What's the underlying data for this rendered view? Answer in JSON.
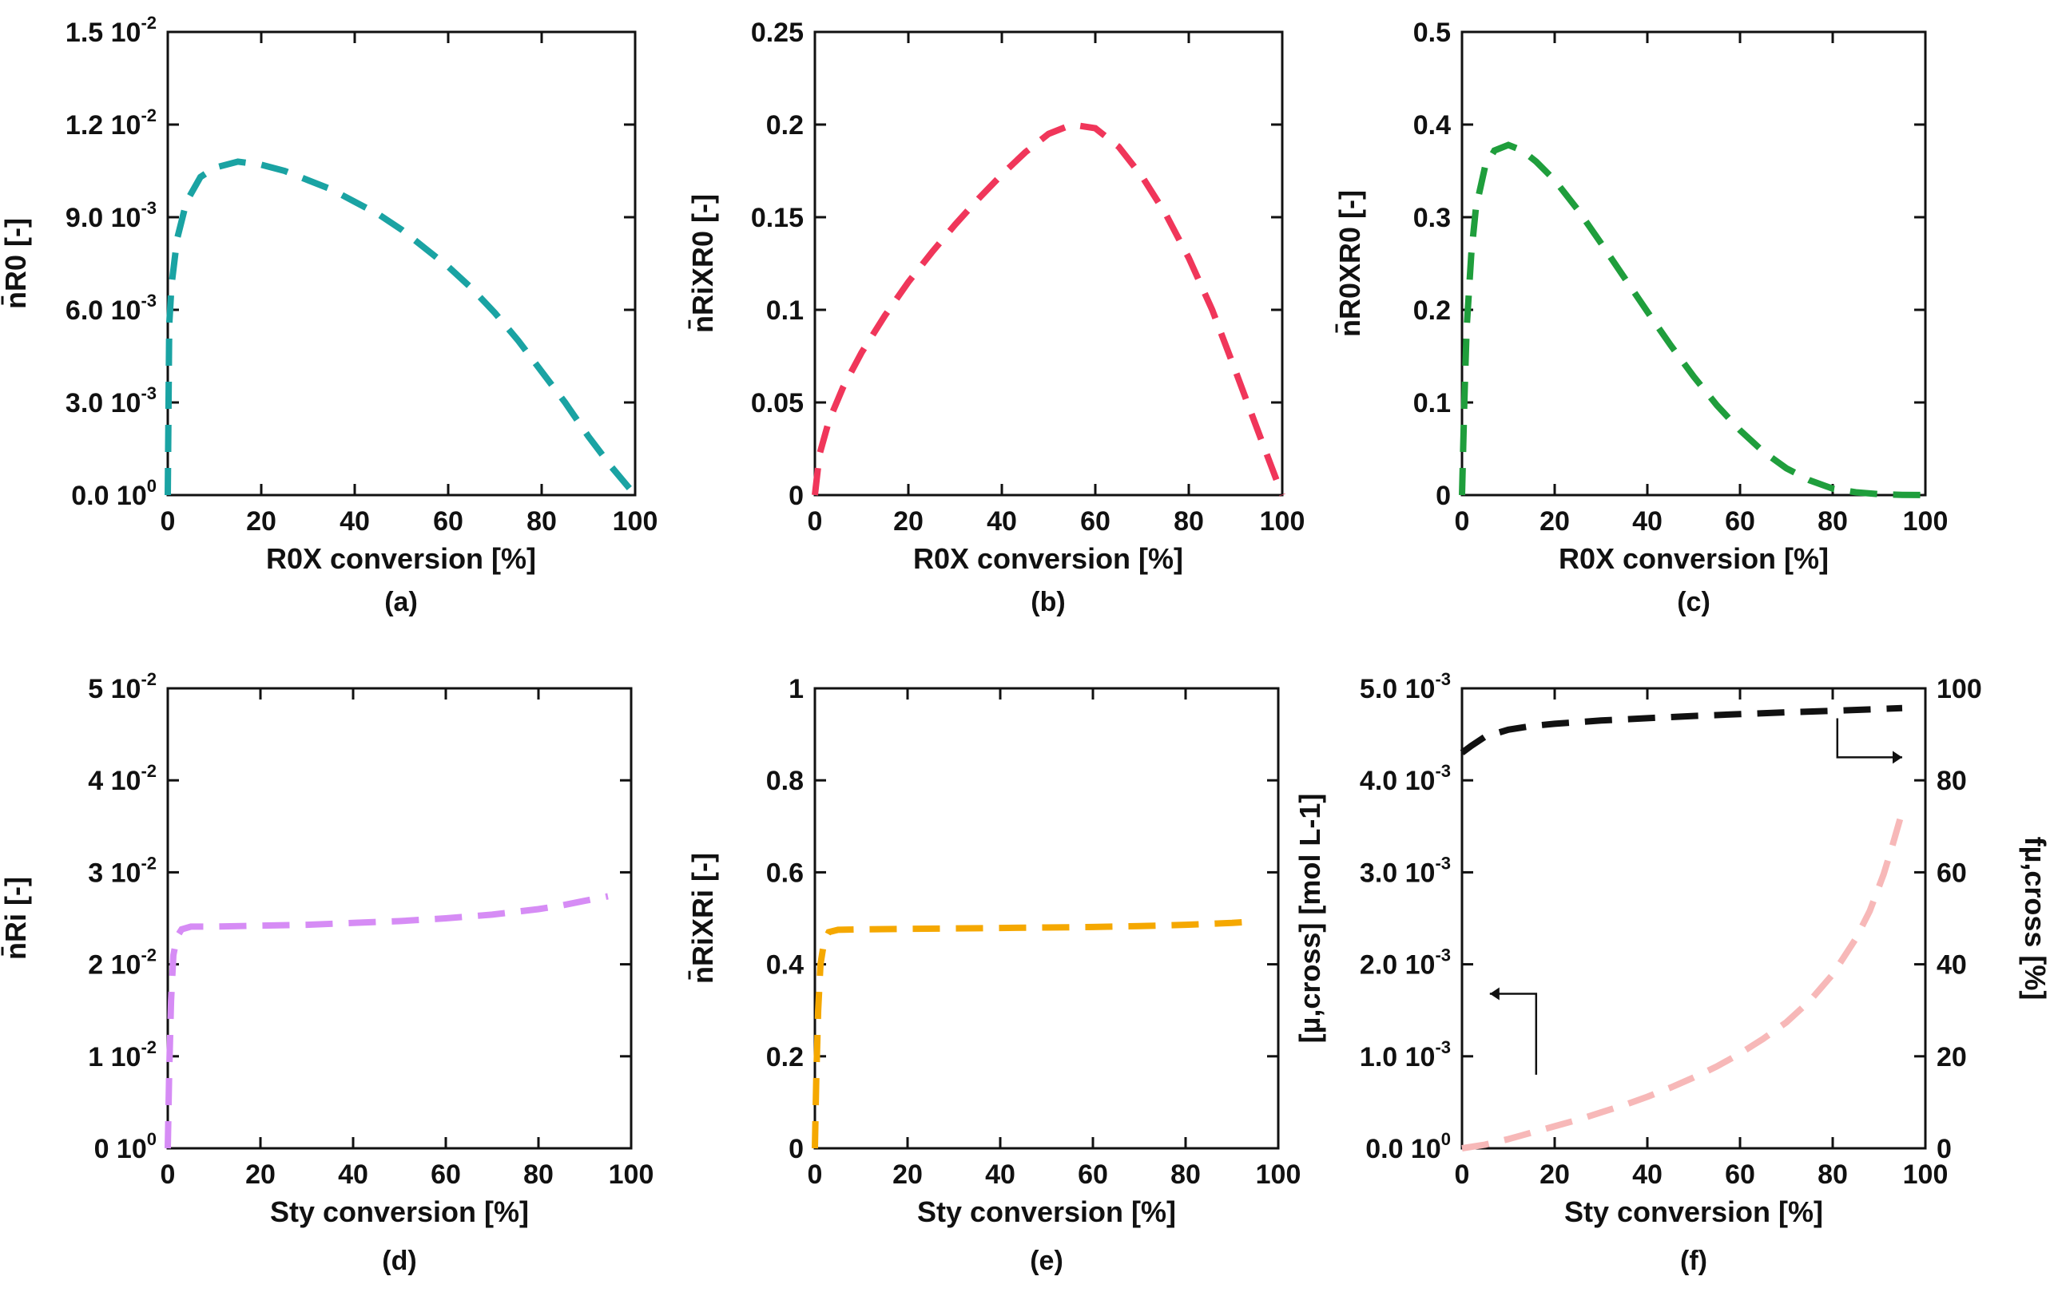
{
  "chart_data": [
    {
      "id": "a",
      "panel_label": "(a)",
      "type": "line",
      "xlabel": "R0X conversion [%]",
      "ylabel": "n̄R0 [-]",
      "xlim": [
        0,
        100
      ],
      "ylim": [
        0,
        0.015
      ],
      "x_ticks": [
        "0",
        "20",
        "40",
        "60",
        "80",
        "100"
      ],
      "y_ticks": [
        {
          "mant": "0.0 10",
          "exp": "0"
        },
        {
          "mant": "3.0 10",
          "exp": "-3"
        },
        {
          "mant": "6.0 10",
          "exp": "-3"
        },
        {
          "mant": "9.0 10",
          "exp": "-3"
        },
        {
          "mant": "1.2 10",
          "exp": "-2"
        },
        {
          "mant": "1.5 10",
          "exp": "-2"
        }
      ],
      "series": [
        {
          "name": "n_R0",
          "color": "#1aa3a3",
          "x": [
            0,
            0.3,
            0.8,
            2,
            4,
            7,
            10,
            15,
            20,
            25,
            30,
            35,
            40,
            45,
            50,
            55,
            60,
            65,
            70,
            75,
            80,
            85,
            90,
            95,
            100
          ],
          "y": [
            0,
            0.0055,
            0.0068,
            0.0083,
            0.0095,
            0.0103,
            0.0106,
            0.0108,
            0.0107,
            0.0105,
            0.0102,
            0.0099,
            0.0095,
            0.0091,
            0.0086,
            0.008,
            0.0074,
            0.0067,
            0.0059,
            0.005,
            0.004,
            0.003,
            0.0019,
            0.0009,
            0
          ]
        }
      ]
    },
    {
      "id": "b",
      "panel_label": "(b)",
      "type": "line",
      "xlabel": "R0X conversion [%]",
      "ylabel": "n̄RiXR0 [-]",
      "xlim": [
        0,
        100
      ],
      "ylim": [
        0,
        0.25
      ],
      "x_ticks": [
        "0",
        "20",
        "40",
        "60",
        "80",
        "100"
      ],
      "y_ticks": [
        {
          "mant": "0",
          "exp": ""
        },
        {
          "mant": "0.05",
          "exp": ""
        },
        {
          "mant": "0.1",
          "exp": ""
        },
        {
          "mant": "0.15",
          "exp": ""
        },
        {
          "mant": "0.2",
          "exp": ""
        },
        {
          "mant": "0.25",
          "exp": ""
        }
      ],
      "series": [
        {
          "name": "n_RiXR0",
          "color": "#f0365a",
          "x": [
            0,
            1,
            3,
            6,
            10,
            15,
            20,
            25,
            30,
            35,
            40,
            45,
            50,
            55,
            60,
            65,
            70,
            75,
            80,
            85,
            90,
            94,
            97,
            100
          ],
          "y": [
            0,
            0.022,
            0.04,
            0.058,
            0.077,
            0.097,
            0.115,
            0.131,
            0.146,
            0.16,
            0.173,
            0.185,
            0.195,
            0.2,
            0.198,
            0.188,
            0.172,
            0.152,
            0.128,
            0.1,
            0.067,
            0.04,
            0.02,
            0
          ]
        }
      ]
    },
    {
      "id": "c",
      "panel_label": "(c)",
      "type": "line",
      "xlabel": "R0X conversion [%]",
      "ylabel": "n̄R0XR0 [-]",
      "xlim": [
        0,
        100
      ],
      "ylim": [
        0,
        0.5
      ],
      "x_ticks": [
        "0",
        "20",
        "40",
        "60",
        "80",
        "100"
      ],
      "y_ticks": [
        {
          "mant": "0",
          "exp": ""
        },
        {
          "mant": "0.1",
          "exp": ""
        },
        {
          "mant": "0.2",
          "exp": ""
        },
        {
          "mant": "0.3",
          "exp": ""
        },
        {
          "mant": "0.4",
          "exp": ""
        },
        {
          "mant": "0.5",
          "exp": ""
        }
      ],
      "series": [
        {
          "name": "n_R0XR0",
          "color": "#1f9e3c",
          "x": [
            0,
            0.5,
            1,
            2,
            3,
            5,
            7,
            10,
            13,
            16,
            20,
            25,
            30,
            35,
            40,
            45,
            50,
            55,
            60,
            65,
            70,
            75,
            80,
            85,
            90,
            95,
            100
          ],
          "y": [
            0,
            0.1,
            0.18,
            0.26,
            0.31,
            0.355,
            0.372,
            0.378,
            0.372,
            0.36,
            0.34,
            0.308,
            0.272,
            0.235,
            0.198,
            0.162,
            0.128,
            0.097,
            0.07,
            0.047,
            0.029,
            0.016,
            0.007,
            0.003,
            0.001,
            0.0003,
            0
          ]
        }
      ]
    },
    {
      "id": "d",
      "panel_label": "(d)",
      "type": "line",
      "xlabel": "Sty conversion [%]",
      "ylabel": "n̄Ri [-]",
      "xlim": [
        0,
        100
      ],
      "ylim": [
        0,
        0.05
      ],
      "x_ticks": [
        "0",
        "20",
        "40",
        "60",
        "80",
        "100"
      ],
      "y_ticks": [
        {
          "mant": "0 10",
          "exp": "0"
        },
        {
          "mant": "1 10",
          "exp": "-2"
        },
        {
          "mant": "2 10",
          "exp": "-2"
        },
        {
          "mant": "3 10",
          "exp": "-2"
        },
        {
          "mant": "4 10",
          "exp": "-2"
        },
        {
          "mant": "5 10",
          "exp": "-2"
        }
      ],
      "series": [
        {
          "name": "n_Ri",
          "color": "#d68cf5",
          "x": [
            0,
            0.3,
            0.7,
            1.2,
            2,
            3,
            5,
            10,
            20,
            30,
            40,
            50,
            60,
            70,
            80,
            85,
            90,
            95
          ],
          "y": [
            0,
            0.008,
            0.016,
            0.021,
            0.023,
            0.0238,
            0.0241,
            0.0241,
            0.0242,
            0.0243,
            0.0245,
            0.0247,
            0.025,
            0.0254,
            0.026,
            0.0264,
            0.0269,
            0.0274
          ]
        }
      ]
    },
    {
      "id": "e",
      "panel_label": "(e)",
      "type": "line",
      "xlabel": "Sty conversion [%]",
      "ylabel": "n̄RiXRi [-]",
      "xlim": [
        0,
        100
      ],
      "ylim": [
        0,
        1
      ],
      "x_ticks": [
        "0",
        "20",
        "40",
        "60",
        "80",
        "100"
      ],
      "y_ticks": [
        {
          "mant": "0",
          "exp": ""
        },
        {
          "mant": "0.2",
          "exp": ""
        },
        {
          "mant": "0.4",
          "exp": ""
        },
        {
          "mant": "0.6",
          "exp": ""
        },
        {
          "mant": "0.8",
          "exp": ""
        },
        {
          "mant": "1",
          "exp": ""
        }
      ],
      "series": [
        {
          "name": "n_RiXRi",
          "color": "#f5a800",
          "x": [
            0,
            0.3,
            0.7,
            1.2,
            2,
            3,
            5,
            10,
            20,
            30,
            40,
            50,
            60,
            70,
            80,
            90,
            95
          ],
          "y": [
            0,
            0.15,
            0.3,
            0.4,
            0.45,
            0.47,
            0.475,
            0.476,
            0.477,
            0.478,
            0.479,
            0.48,
            0.481,
            0.483,
            0.486,
            0.49,
            0.493
          ]
        }
      ]
    },
    {
      "id": "f",
      "panel_label": "(f)",
      "type": "line",
      "xlabel": "Sty conversion [%]",
      "ylabel": "[µ,cross] [mol L-1]",
      "y2label": "fµ,cross [%]",
      "xlim": [
        0,
        100
      ],
      "ylim": [
        0,
        0.005
      ],
      "y2lim": [
        0,
        100
      ],
      "x_ticks": [
        "0",
        "20",
        "40",
        "60",
        "80",
        "100"
      ],
      "y_ticks": [
        {
          "mant": "0.0 10",
          "exp": "0"
        },
        {
          "mant": "1.0 10",
          "exp": "-3"
        },
        {
          "mant": "2.0 10",
          "exp": "-3"
        },
        {
          "mant": "3.0 10",
          "exp": "-3"
        },
        {
          "mant": "4.0 10",
          "exp": "-3"
        },
        {
          "mant": "5.0 10",
          "exp": "-3"
        }
      ],
      "y2_ticks": [
        "0",
        "20",
        "40",
        "60",
        "80",
        "100"
      ],
      "series": [
        {
          "name": "mu_cross_concentration",
          "axis": "left",
          "color": "#f7b8b8",
          "x": [
            0,
            5,
            10,
            15,
            20,
            25,
            30,
            35,
            40,
            45,
            50,
            55,
            60,
            65,
            70,
            75,
            80,
            85,
            88,
            91,
            93,
            95
          ],
          "y": [
            0,
            4e-05,
            0.0001,
            0.00017,
            0.00024,
            0.00031,
            0.00039,
            0.00047,
            0.00056,
            0.00066,
            0.00077,
            0.00089,
            0.00103,
            0.00119,
            0.00137,
            0.0016,
            0.00189,
            0.00228,
            0.00258,
            0.00298,
            0.00331,
            0.00366
          ]
        },
        {
          "name": "f_mu_cross",
          "axis": "right",
          "color": "#111111",
          "x": [
            0,
            2,
            5,
            10,
            15,
            20,
            30,
            40,
            50,
            60,
            70,
            80,
            90,
            95
          ],
          "y": [
            86,
            87.5,
            89.5,
            91,
            91.8,
            92.3,
            93,
            93.5,
            94,
            94.4,
            94.8,
            95.1,
            95.5,
            95.7
          ]
        }
      ],
      "annotations": [
        "arrow-to-left-axis",
        "arrow-to-right-axis"
      ]
    }
  ]
}
